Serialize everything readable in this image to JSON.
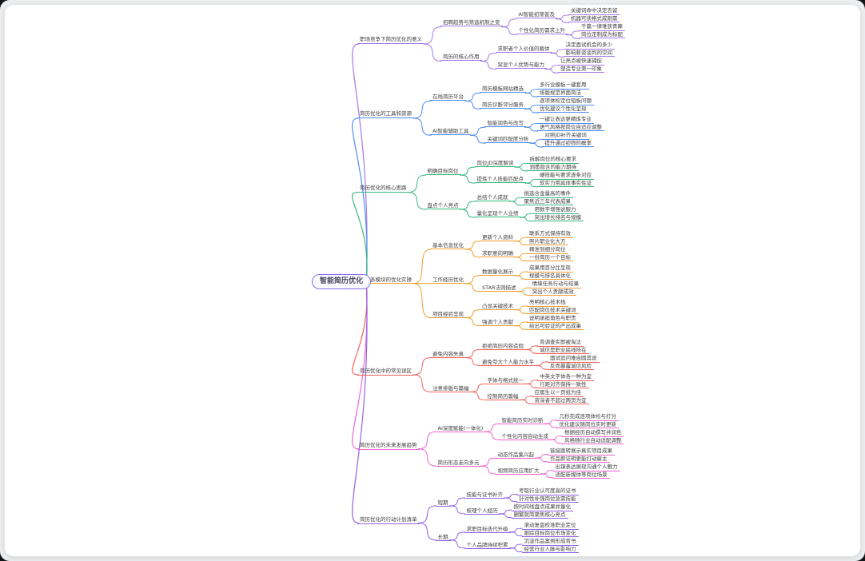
{
  "canvas": {
    "background": "#edeff1",
    "card_color": "#ffffff"
  },
  "mindmap": {
    "root": {
      "label": "智能简历优化",
      "border_color": "#8a6cf0",
      "fill": "#fbfaff"
    },
    "branches": [
      {
        "label": "职场竞争下简历优化的意义",
        "color": "#a478ea",
        "children": [
          {
            "label": "招聘趋势与筛选机制之变",
            "children": [
              {
                "label": "AI智能初筛普及",
                "children": [
                  {
                    "label": "关键词命中决定去留"
                  },
                  {
                    "label": "机器可读格式成刚需"
                  }
                ]
              },
              {
                "label": "个性化简历需求上升",
                "children": [
                  {
                    "label": "千篇一律难获青睐"
                  },
                  {
                    "label": "岗位定制成为标配"
                  }
                ]
              }
            ]
          },
          {
            "label": "简历的核心作用",
            "children": [
              {
                "label": "求职者个人价值的载体",
                "children": [
                  {
                    "label": "决定面试机会的多少"
                  },
                  {
                    "label": "影响薪资谈判的空间"
                  }
                ]
              },
              {
                "label": "突显个人优势与能力",
                "children": [
                  {
                    "label": "让亮点被快速捕捉"
                  },
                  {
                    "label": "塑造专业第一印象"
                  }
                ]
              }
            ]
          }
        ]
      },
      {
        "label": "简历优化的工具和资源",
        "color": "#4d8df5",
        "children": [
          {
            "label": "在线简历平台",
            "children": [
              {
                "label": "简历模板网站精选",
                "children": [
                  {
                    "label": "多行业模板一键套用"
                  },
                  {
                    "label": "排版规范界面简洁"
                  }
                ]
              },
              {
                "label": "简历诊断评分服务",
                "children": [
                  {
                    "label": "逐项体检定位短板问题"
                  },
                  {
                    "label": "优化建议个性化呈现"
                  }
                ]
              }
            ]
          },
          {
            "label": "AI智能辅助工具",
            "children": [
              {
                "label": "智能润色与改写",
                "children": [
                  {
                    "label": "一键让表达更精炼专业"
                  },
                  {
                    "label": "语气风格按岗位自适应调整"
                  }
                ]
              },
              {
                "label": "关键词匹配度分析",
                "children": [
                  {
                    "label": "对照JD补齐关键词"
                  },
                  {
                    "label": "提升通过初筛的概率"
                  }
                ]
              }
            ]
          }
        ]
      },
      {
        "label": "简历优化的核心思路",
        "color": "#35b87f",
        "children": [
          {
            "label": "明确目标岗位",
            "children": [
              {
                "label": "岗位JD深度解读",
                "children": [
                  {
                    "label": "拆解岗位的核心要求"
                  },
                  {
                    "label": "洞悉隐含的能力期待"
                  }
                ]
              },
              {
                "label": "提炼个人技能匹配点",
                "children": [
                  {
                    "label": "硬技能与要求逐条对应"
                  },
                  {
                    "label": "软实力用具体事实佐证"
                  }
                ]
              }
            ]
          },
          {
            "label": "盘点个人亮点",
            "children": [
              {
                "label": "总结个人成就",
                "children": [
                  {
                    "label": "挑选含金量高的事件"
                  },
                  {
                    "label": "聚焦近三年代表成果"
                  }
                ]
              },
              {
                "label": "量化呈现个人业绩",
                "children": [
                  {
                    "label": "用数字增强说服力"
                  },
                  {
                    "label": "突出增长排名与规模"
                  }
                ]
              }
            ]
          }
        ]
      },
      {
        "label": "简历各模块的优化实操",
        "color": "#f0a030",
        "children": [
          {
            "label": "基本信息优化",
            "children": [
              {
                "label": "更新个人资料",
                "children": [
                  {
                    "label": "联系方式保持有效"
                  },
                  {
                    "label": "照片职业化大方"
                  }
                ]
              },
              {
                "label": "求职意向明确",
                "children": [
                  {
                    "label": "精准到细分岗位"
                  },
                  {
                    "label": "一份简历一个目标"
                  }
                ]
              }
            ]
          },
          {
            "label": "工作经历优化",
            "children": [
              {
                "label": "数据量化展示",
                "children": [
                  {
                    "label": "成果用百分比呈现"
                  },
                  {
                    "label": "规模与排名具体化"
                  }
                ]
              },
              {
                "label": "STAR法则描述",
                "children": [
                  {
                    "label": "情境任务行动与结果"
                  },
                  {
                    "label": "突出个人贡献成效"
                  }
                ]
              }
            ]
          },
          {
            "label": "项目经验呈现",
            "children": [
              {
                "label": "凸显关键技术",
                "children": [
                  {
                    "label": "亮明核心技术栈"
                  },
                  {
                    "label": "匹配岗位技术关键词"
                  }
                ]
              },
              {
                "label": "强调个人贡献",
                "children": [
                  {
                    "label": "说明承担角色与职责"
                  },
                  {
                    "label": "给出可验证的产出成果"
                  }
                ]
              }
            ]
          }
        ]
      },
      {
        "label": "简历优化中的常见误区",
        "color": "#f2635c",
        "children": [
          {
            "label": "避免内容失真",
            "children": [
              {
                "label": "拒绝简历内容造假",
                "children": [
                  {
                    "label": "背调查实即被淘汰"
                  },
                  {
                    "label": "诚信是职业底线所在"
                  }
                ]
              },
              {
                "label": "避免夸大个人能力水平",
                "children": [
                  {
                    "label": "面试追问难自圆其说"
                  },
                  {
                    "label": "反而暴露诚信风险"
                  }
                ]
              }
            ]
          },
          {
            "label": "注意排版与篇幅",
            "children": [
              {
                "label": "字体与格式统一",
                "children": [
                  {
                    "label": "中英文字体各一种为宜"
                  },
                  {
                    "label": "行距对齐保持一致性"
                  }
                ]
              },
              {
                "label": "控制简历篇幅",
                "children": [
                  {
                    "label": "应届生以一页纸为佳"
                  },
                  {
                    "label": "资深者不超过两页为宜"
                  }
                ]
              }
            ]
          }
        ]
      },
      {
        "label": "简历优化的未来发展趋势",
        "color": "#ee66cf",
        "children": [
          {
            "label": "AI深度赋能(一体化)",
            "children": [
              {
                "label": "智能简历实时诊断",
                "children": [
                  {
                    "label": "几秒完成逐项体检与打分"
                  },
                  {
                    "label": "优化建议随岗位实时更新"
                  }
                ]
              },
              {
                "label": "个性化内容自动生成",
                "children": [
                  {
                    "label": "根据经历自动撰写并润色"
                  },
                  {
                    "label": "风格随行业自动适配调整"
                  }
                ]
              }
            ]
          },
          {
            "label": "简历形态走向多元",
            "children": [
              {
                "label": "动态作品集兴起",
                "children": [
                  {
                    "label": "链接跳转展示真实项目成果"
                  },
                  {
                    "label": "作品即证明更能打动雇主"
                  }
                ]
              },
              {
                "label": "视频简历应用扩大",
                "children": [
                  {
                    "label": "出镜表达展现沟通个人魅力"
                  },
                  {
                    "label": "适配新媒体等岗位场景"
                  }
                ]
              }
            ]
          }
        ]
      },
      {
        "label": "简历优化的行动计划清单",
        "color": "#9061e8",
        "children": [
          {
            "label": "短期",
            "children": [
              {
                "label": "技能与证书补齐",
                "children": [
                  {
                    "label": "考取行业认可度高的证书"
                  },
                  {
                    "label": "针对性补强岗位急需技能"
                  }
                ]
              },
              {
                "label": "梳理个人经历",
                "children": [
                  {
                    "label": "按时间线盘点成果并量化"
                  },
                  {
                    "label": "删繁就简聚焦核心亮点"
                  }
                ]
              }
            ]
          },
          {
            "label": "长期",
            "children": [
              {
                "label": "求职目标迭代升级",
                "children": [
                  {
                    "label": "滚动复盘校准职业定位"
                  },
                  {
                    "label": "跟踪目标岗位市场变化"
                  }
                ]
              },
              {
                "label": "个人品牌持续积累",
                "children": [
                  {
                    "label": "沉淀作品案例形成背书"
                  },
                  {
                    "label": "经营行业人脉与影响力"
                  }
                ]
              }
            ]
          }
        ]
      }
    ]
  }
}
